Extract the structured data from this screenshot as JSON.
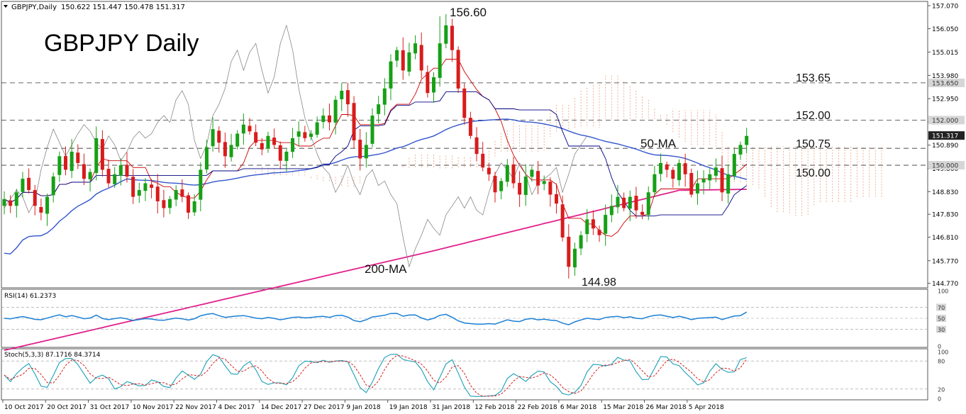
{
  "chart_data": {
    "type": "candlestick",
    "symbol_header": "GBPJPY,Daily",
    "ohlc_header": "150.622 151.447 150.478 151.317",
    "title": "GBPJPY Daily",
    "ylim": [
      144.6,
      157.07
    ],
    "price_ticks": [
      "157.070",
      "156.050",
      "155.015",
      "153.980",
      "152.950",
      "151.920",
      "150.890",
      "149.860",
      "148.830",
      "147.830",
      "146.810",
      "145.770",
      "144.770"
    ],
    "highlighted_ticks": [
      {
        "label": "153.650",
        "value": 153.65,
        "style": "light"
      },
      {
        "label": "152.000",
        "value": 152.0,
        "style": "light"
      },
      {
        "label": "151.317",
        "value": 151.317,
        "style": "dark"
      },
      {
        "label": "150.000",
        "value": 150.0,
        "style": "light"
      }
    ],
    "levels": [
      {
        "label": "153.65",
        "value": 153.65
      },
      {
        "label": "152.00",
        "value": 152.0
      },
      {
        "label": "150.75",
        "value": 150.75
      },
      {
        "label": "150.00",
        "value": 150.0
      }
    ],
    "annotations": {
      "high": "156.60",
      "low": "144.98",
      "ma50": "50-MA",
      "ma200": "200-MA"
    },
    "x_labels": [
      "10 Oct 2017",
      "20 Oct 2017",
      "31 Oct 2017",
      "10 Nov 2017",
      "22 Nov 2017",
      "4 Dec 2017",
      "14 Dec 2017",
      "27 Dec 2017",
      "9 Jan 2018",
      "19 Jan 2018",
      "31 Jan 2018",
      "12 Feb 2018",
      "22 Feb 2018",
      "6 Mar 2018",
      "15 Mar 2018",
      "26 Mar 2018",
      "5 Apr 2018"
    ],
    "closes": [
      148.5,
      148.2,
      148.8,
      149.4,
      148.9,
      148.2,
      147.9,
      148.6,
      149.5,
      150.4,
      149.8,
      150.6,
      150.1,
      149.4,
      149.7,
      151.2,
      149.8,
      149.2,
      149.6,
      150.0,
      149.5,
      148.6,
      148.9,
      149.2,
      149.0,
      148.4,
      148.1,
      148.5,
      148.9,
      148.6,
      147.9,
      148.4,
      149.8,
      150.8,
      151.6,
      151.0,
      150.4,
      150.9,
      151.4,
      151.8,
      151.5,
      151.0,
      150.7,
      151.3,
      150.9,
      150.2,
      150.6,
      151.2,
      151.5,
      151.2,
      151.4,
      151.9,
      152.2,
      151.9,
      152.9,
      153.3,
      152.7,
      151.1,
      150.3,
      150.9,
      152.2,
      152.7,
      153.4,
      154.6,
      155.1,
      154.2,
      155.0,
      155.4,
      154.2,
      153.2,
      153.9,
      155.4,
      156.2,
      155.1,
      153.4,
      152.1,
      151.3,
      150.5,
      149.9,
      149.6,
      148.8,
      149.3,
      150.0,
      149.2,
      148.7,
      149.5,
      149.8,
      149.1,
      149.3,
      148.7,
      148.3,
      146.8,
      145.5,
      146.3,
      146.9,
      147.6,
      147.2,
      146.9,
      147.8,
      148.2,
      148.6,
      148.1,
      148.6,
      148.0,
      147.8,
      148.8,
      149.6,
      150.1,
      149.8,
      149.4,
      150.1,
      149.6,
      148.7,
      149.2,
      149.4,
      149.6,
      149.9,
      148.8,
      149.6,
      150.5,
      150.9,
      151.3
    ],
    "rsi": {
      "label": "RSI(14) 61.2373",
      "value": 61.24,
      "ylim": [
        0,
        100
      ],
      "ticks": [
        "100",
        "70",
        "50",
        "30",
        "0"
      ]
    },
    "stoch": {
      "label": "Stoch(5,3,3) 87.1716 84.3714",
      "main": 87.17,
      "signal": 84.37,
      "ylim": [
        0,
        100
      ],
      "ticks": [
        "100",
        "80",
        "20",
        "0"
      ]
    }
  }
}
